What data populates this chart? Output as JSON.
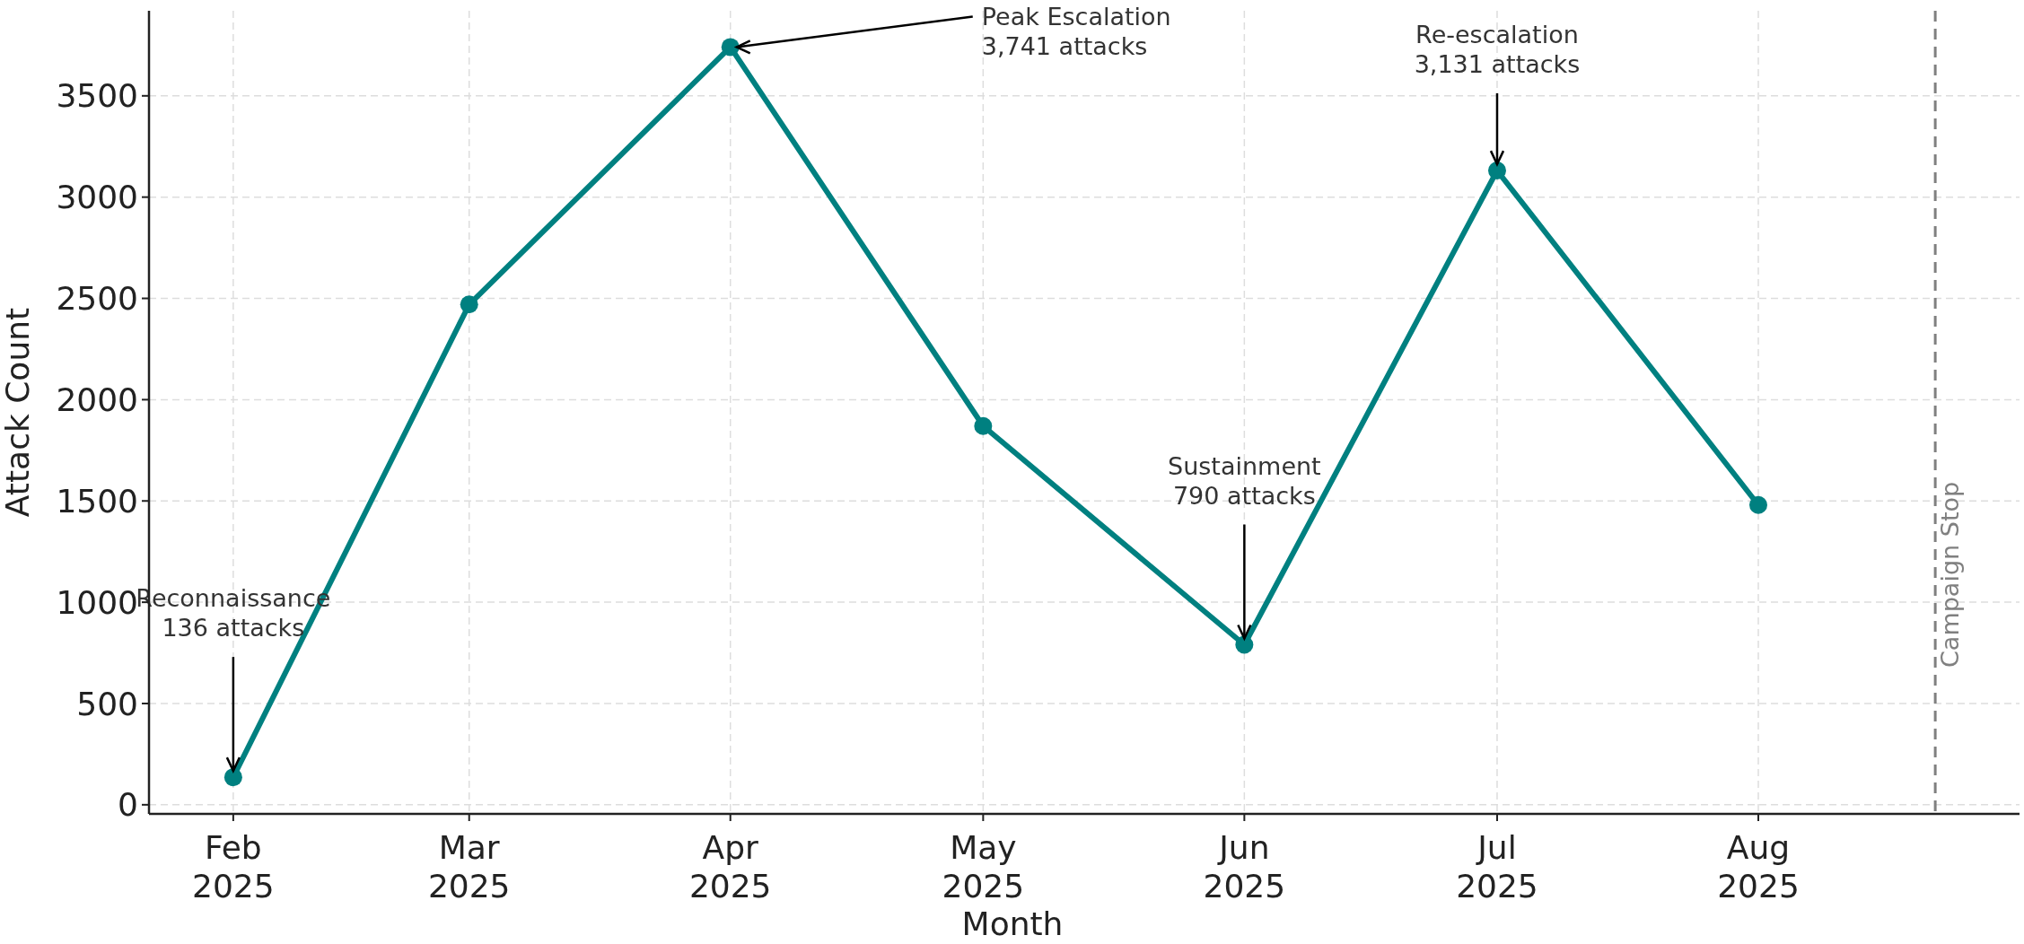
{
  "chart_data": {
    "type": "line",
    "xlabel": "Month",
    "ylabel": "Attack Count",
    "x": [
      "2025-02-01",
      "2025-03-01",
      "2025-04-01",
      "2025-05-01",
      "2025-06-01",
      "2025-07-01",
      "2025-08-01"
    ],
    "series": [
      {
        "color": "#008080",
        "values": [
          136,
          2470,
          3741,
          1870,
          790,
          3131,
          1480
        ]
      }
    ],
    "xlim": [
      "2025-01-22",
      "2025-09-01"
    ],
    "xticks": [
      {
        "value": "2025-02-01",
        "label": "Feb\n2025"
      },
      {
        "value": "2025-03-01",
        "label": "Mar\n2025"
      },
      {
        "value": "2025-04-01",
        "label": "Apr\n2025"
      },
      {
        "value": "2025-05-01",
        "label": "May\n2025"
      },
      {
        "value": "2025-06-01",
        "label": "Jun\n2025"
      },
      {
        "value": "2025-07-01",
        "label": "Jul\n2025"
      },
      {
        "value": "2025-08-01",
        "label": "Aug\n2025"
      }
    ],
    "ylim": [
      -45,
      3920
    ],
    "yticks": [
      0,
      500,
      1000,
      1500,
      2000,
      2500,
      3000,
      3500
    ],
    "grid": true,
    "marker": "circle",
    "line_style": "solid",
    "ref_lines": [
      {
        "axis": "x",
        "value": "2025-08-22",
        "label": "Campaign Stop",
        "color": "#808080",
        "line_style": "dashed"
      }
    ],
    "annotations": [
      {
        "text": "Reconnaissance\n136 attacks",
        "x": "2025-02-01",
        "y": 136
      },
      {
        "text": "Peak Escalation\n3,741 attacks",
        "x": "2025-04-01",
        "y": 3741
      },
      {
        "text": "Sustainment\n790 attacks",
        "x": "2025-06-01",
        "y": 790
      },
      {
        "text": "Re-escalation\n3,131 attacks",
        "x": "2025-07-01",
        "y": 3131
      }
    ]
  }
}
